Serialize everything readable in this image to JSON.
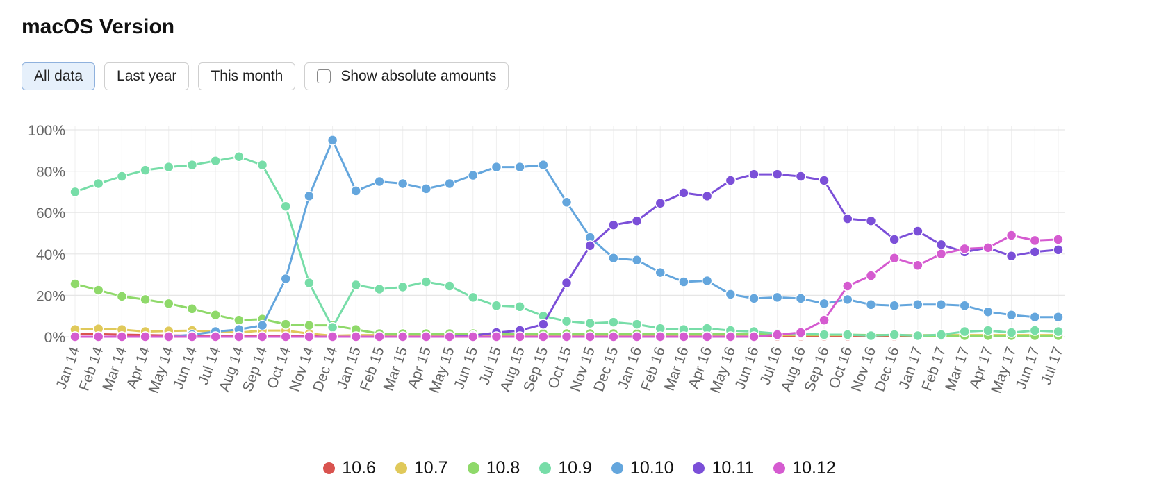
{
  "title": "macOS Version",
  "controls": {
    "all_data": "All data",
    "last_year": "Last year",
    "this_month": "This month",
    "show_absolute": "Show absolute amounts"
  },
  "chart_data": {
    "type": "line",
    "categories": [
      "Jan 14",
      "Feb 14",
      "Mar 14",
      "Apr 14",
      "May 14",
      "Jun 14",
      "Jul 14",
      "Aug 14",
      "Sep 14",
      "Oct 14",
      "Nov 14",
      "Dec 14",
      "Jan 15",
      "Feb 15",
      "Mar 15",
      "Apr 15",
      "May 15",
      "Jun 15",
      "Jul 15",
      "Aug 15",
      "Sep 15",
      "Oct 15",
      "Nov 15",
      "Dec 15",
      "Jan 16",
      "Feb 16",
      "Mar 16",
      "Apr 16",
      "May 16",
      "Jun 16",
      "Jul 16",
      "Aug 16",
      "Sep 16",
      "Oct 16",
      "Nov 16",
      "Dec 16",
      "Jan 17",
      "Feb 17",
      "Mar 17",
      "Apr 17",
      "May 17",
      "Jun 17",
      "Jul 17"
    ],
    "y_ticks": [
      "0%",
      "20%",
      "40%",
      "60%",
      "80%",
      "100%"
    ],
    "ylim": [
      0,
      100
    ],
    "grid": true,
    "legend_position": "bottom",
    "series": [
      {
        "name": "10.6",
        "color": "#d9534f",
        "values": [
          1.5,
          1.2,
          1,
          0.8,
          0.6,
          0.5,
          0.4,
          0.3,
          0.3,
          0.3,
          0.2,
          0.2,
          0.2,
          0.2,
          0.2,
          0.2,
          0.2,
          0.2,
          0.2,
          0.2,
          0.2,
          0.2,
          0.2,
          0.2,
          0.2,
          0.2,
          0.2,
          0.2,
          0.2,
          0.2,
          0.2,
          0.2,
          0.2,
          0.2,
          0.2,
          0.2,
          0.2,
          0.2,
          0.2,
          0.2,
          0.2,
          0.2,
          0.2
        ]
      },
      {
        "name": "10.7",
        "color": "#e0c95a",
        "values": [
          3.5,
          3.8,
          3.5,
          2.5,
          2.8,
          3,
          2.5,
          2,
          3,
          3,
          1.5,
          0.5,
          0.8,
          0.8,
          1,
          1,
          1,
          1,
          1,
          1,
          1,
          1,
          1,
          1,
          1,
          1,
          1,
          1,
          1,
          0.8,
          0.8,
          0.8,
          0.8,
          0.8,
          0.8,
          0.8,
          0.8,
          0.8,
          0.8,
          0.8,
          0.8,
          0.8,
          0.8
        ]
      },
      {
        "name": "10.8",
        "color": "#8fd96a",
        "values": [
          25.5,
          22.5,
          19.5,
          18,
          16,
          13.5,
          10.5,
          8,
          8.5,
          6,
          5.5,
          5.5,
          3.5,
          1.5,
          1.5,
          1.5,
          1.5,
          1.5,
          1.5,
          1.5,
          1.5,
          1.5,
          1.5,
          1.5,
          1.5,
          1.5,
          1.5,
          1.5,
          1.5,
          1.2,
          1.2,
          1,
          1,
          1,
          0.8,
          0.8,
          0.5,
          0.5,
          0.5,
          0.5,
          0.5,
          0.5,
          0.5
        ]
      },
      {
        "name": "10.9",
        "color": "#77dda8",
        "values": [
          70,
          74,
          77.5,
          80.5,
          82,
          83,
          85,
          87,
          83,
          63,
          26,
          4.5,
          25,
          23,
          24,
          26.5,
          24.5,
          19,
          15,
          14.5,
          10,
          7.5,
          6.5,
          7,
          6,
          4,
          3.5,
          4,
          3,
          2.5,
          1.5,
          1.5,
          1,
          1,
          0.5,
          1,
          0.5,
          1,
          2.5,
          3,
          2,
          3,
          2.5
        ]
      },
      {
        "name": "10.10",
        "color": "#64a6dd",
        "values": [
          0,
          0,
          0,
          0,
          0,
          1,
          2.5,
          3.5,
          5.5,
          28,
          68,
          95,
          70.5,
          75,
          74,
          71.5,
          74,
          78,
          82,
          82,
          83,
          65,
          48,
          38,
          37,
          31,
          26.5,
          27,
          20.5,
          18.5,
          19,
          18.5,
          16,
          18,
          15.5,
          15,
          15.5,
          15.5,
          15,
          12,
          10.5,
          9.5,
          9.5
        ]
      },
      {
        "name": "10.11",
        "color": "#7b4fd8",
        "values": [
          0,
          0,
          0,
          0,
          0,
          0,
          0,
          0,
          0,
          0,
          0,
          0,
          0,
          0,
          0,
          0,
          0,
          0.5,
          2,
          3,
          6,
          26,
          44,
          54,
          56,
          64.5,
          69.5,
          68,
          75.5,
          78.5,
          78.5,
          77.5,
          75.5,
          57,
          56,
          47,
          51,
          44.5,
          41,
          43,
          39,
          41,
          42
        ]
      },
      {
        "name": "10.12",
        "color": "#d55bd0",
        "values": [
          0,
          0,
          0,
          0,
          0,
          0,
          0,
          0,
          0,
          0,
          0,
          0,
          0,
          0,
          0,
          0,
          0,
          0,
          0,
          0,
          0,
          0,
          0,
          0,
          0,
          0,
          0,
          0,
          0,
          0,
          1,
          2,
          8,
          24.5,
          29.5,
          38,
          34.5,
          40,
          42.5,
          43,
          49,
          46.5,
          47
        ]
      }
    ]
  }
}
